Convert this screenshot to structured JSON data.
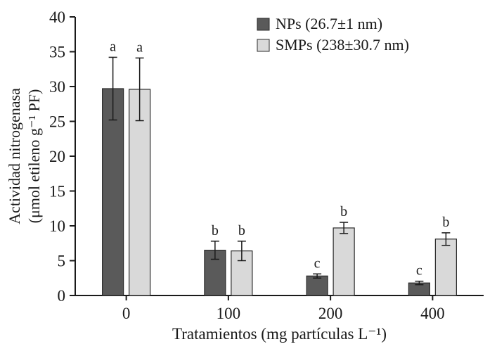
{
  "chart_data": {
    "type": "bar",
    "title": "",
    "xlabel": "Tratamientos (mg partículas L⁻¹)",
    "ylabel_line1": "Actividad nitrogenasa",
    "ylabel_line2": "(μmol etileno g⁻¹ PF)",
    "categories": [
      "0",
      "100",
      "200",
      "400"
    ],
    "ylim": [
      0,
      40
    ],
    "ytick_step": 5,
    "grid": false,
    "legend_position": "top-right",
    "series": [
      {
        "name": "NPs (26.7±1 nm)",
        "color": "#5a5a5a",
        "values": [
          29.7,
          6.5,
          2.8,
          1.8
        ],
        "errors": [
          4.5,
          1.3,
          0.3,
          0.25
        ],
        "letters": [
          "a",
          "b",
          "c",
          "c"
        ]
      },
      {
        "name": "SMPs (238±30.7 nm)",
        "color": "#d9d9d9",
        "values": [
          29.6,
          6.4,
          9.7,
          8.1
        ],
        "errors": [
          4.5,
          1.4,
          0.8,
          0.9
        ],
        "letters": [
          "a",
          "b",
          "b",
          "b"
        ]
      }
    ]
  },
  "colors": {
    "axis": "#1a1a1a",
    "bar_stroke": "#2b2b2b",
    "error_bar": "#1a1a1a",
    "text": "#1a1a1a",
    "background": "#ffffff"
  }
}
